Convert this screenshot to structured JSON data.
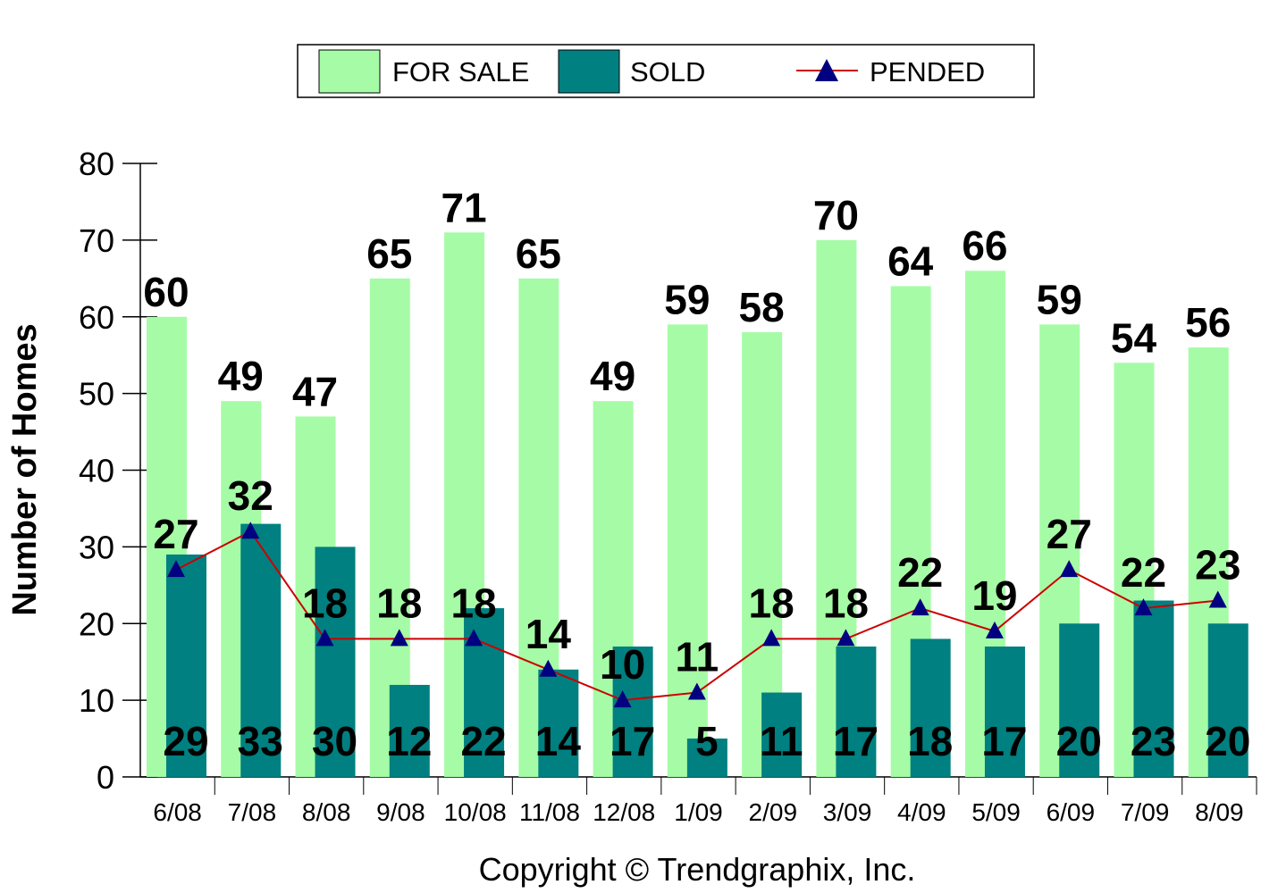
{
  "chart_data": {
    "type": "bar",
    "categories": [
      "6/08",
      "7/08",
      "8/08",
      "9/08",
      "10/08",
      "11/08",
      "12/08",
      "1/09",
      "2/09",
      "3/09",
      "4/09",
      "5/09",
      "6/09",
      "7/09",
      "8/09"
    ],
    "series": [
      {
        "name": "FOR SALE",
        "kind": "bar",
        "color": "#a6fca6",
        "values": [
          60,
          49,
          47,
          65,
          71,
          65,
          49,
          59,
          58,
          70,
          64,
          66,
          59,
          54,
          56
        ]
      },
      {
        "name": "SOLD",
        "kind": "bar",
        "color": "#008080",
        "values": [
          29,
          33,
          30,
          12,
          22,
          14,
          17,
          5,
          11,
          17,
          18,
          17,
          20,
          23,
          20
        ]
      },
      {
        "name": "PENDED",
        "kind": "line",
        "color": "#cc0000",
        "marker_color": "#000080",
        "values": [
          27,
          32,
          18,
          18,
          18,
          14,
          10,
          11,
          18,
          18,
          22,
          19,
          27,
          22,
          23
        ]
      }
    ],
    "ylabel": "Number of Homes",
    "ylim": [
      0,
      80
    ],
    "yticks": [
      0,
      10,
      20,
      30,
      40,
      50,
      60,
      70,
      80
    ],
    "legend_position": "top-center"
  },
  "copyright": "Copyright © Trendgraphix, Inc."
}
